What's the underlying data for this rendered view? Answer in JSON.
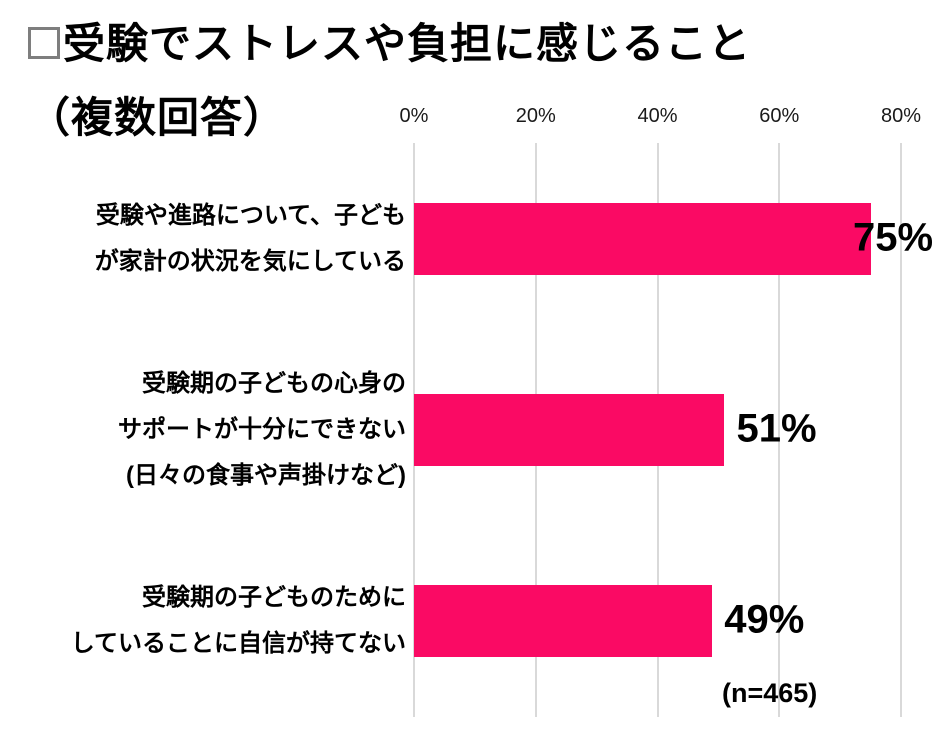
{
  "title": {
    "square": "□",
    "line1": "受験でストレスや負担に感じること",
    "line2": "（複数回答）"
  },
  "note": "(n=465)",
  "colors": {
    "bar": "#FA0A64",
    "gridline": "#D9D9D9",
    "text": "#000000"
  },
  "chart_data": {
    "type": "bar",
    "orientation": "horizontal",
    "title": "受験でストレスや負担に感じること（複数回答）",
    "categories": [
      "受験や進路について、子どもが家計の状況を気にしている",
      "受験期の子どもの心身のサポートが十分にできない(日々の食事や声掛けなど)",
      "受験期の子どものためにしていることに自信が持てない"
    ],
    "category_lines": [
      [
        "受験や進路について、子ども",
        "が家計の状況を気にしている"
      ],
      [
        "受験期の子どもの心身の",
        "サポートが十分にできない",
        "(日々の食事や声掛けなど)"
      ],
      [
        "受験期の子どものために",
        "していることに自信が持てない"
      ]
    ],
    "values": [
      75,
      51,
      49
    ],
    "value_labels": [
      "75%",
      "51%",
      "49%"
    ],
    "x_tick_labels": [
      "0%",
      "20%",
      "40%",
      "60%",
      "80%"
    ],
    "x_tick_values": [
      0,
      20,
      40,
      60,
      80
    ],
    "xlim": [
      0,
      80
    ],
    "grid": true,
    "legend": false,
    "sample_size": "(n=465)"
  }
}
